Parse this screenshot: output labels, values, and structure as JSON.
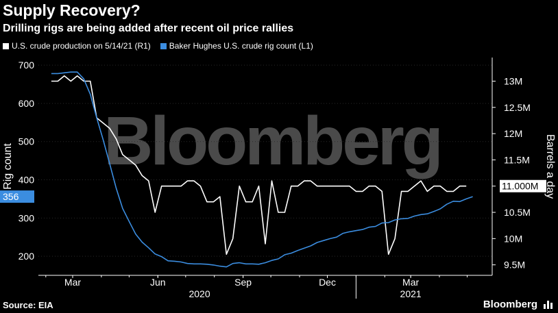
{
  "header": {
    "title": "Supply Recovery?",
    "subtitle": "Drilling rigs are being added after recent oil price rallies"
  },
  "legend": {
    "production_label": "U.S. crude production on 5/14/21 (R1)",
    "rig_label": "Baker Hughes U.S. crude rig count (L1)"
  },
  "footer": {
    "source": "Source: EIA",
    "brand": "Bloomberg"
  },
  "watermark": "Bloomberg",
  "colors": {
    "background": "#000000",
    "production_line": "#ffffff",
    "rig_line": "#3b8de0",
    "axis_text": "#ffffff"
  },
  "chart_data": {
    "type": "line",
    "x_start": "2020-02-07",
    "x_end": "2021-05-14",
    "xlim": [
      "2020-01-24",
      "2021-05-28"
    ],
    "left_axis": {
      "label": "Rig count",
      "ylim": [
        150,
        720
      ],
      "ticks": [
        200,
        300,
        400,
        500,
        600,
        700
      ],
      "tick_labels": [
        "200",
        "300",
        "400",
        "500",
        "600",
        "700"
      ],
      "last_value_label": "356"
    },
    "right_axis": {
      "label": "Barrels a day",
      "ylim": [
        9.3,
        13.45
      ],
      "ticks": [
        9.5,
        10,
        10.5,
        11,
        11.5,
        12,
        12.5,
        13
      ],
      "tick_labels": [
        "9.5M",
        "10M",
        "10.5M",
        "11M",
        "11.5M",
        "12M",
        "12.5M",
        "13M"
      ],
      "last_value_label": "11.000M"
    },
    "x_ticks": [
      {
        "date": "2020-03-01",
        "label": "Mar"
      },
      {
        "date": "2020-06-01",
        "label": "Jun"
      },
      {
        "date": "2020-09-01",
        "label": "Sep"
      },
      {
        "date": "2020-12-01",
        "label": "Dec"
      },
      {
        "date": "2021-03-01",
        "label": "Mar"
      }
    ],
    "year_labels": [
      {
        "date": "2020-07-16",
        "label": "2020"
      },
      {
        "date": "2021-03-01",
        "label": "2021"
      }
    ],
    "year_separator_date": "2021-01-01",
    "grid": true,
    "series": [
      {
        "name": "U.S. crude production on 5/14/21 (R1)",
        "axis": "right",
        "color": "#ffffff",
        "values": [
          13.0,
          13.0,
          13.1,
          13.0,
          13.1,
          13.0,
          13.0,
          12.3,
          12.2,
          12.1,
          11.9,
          11.6,
          11.5,
          11.4,
          11.2,
          11.1,
          10.5,
          11.0,
          11.0,
          11.0,
          11.0,
          11.1,
          11.1,
          11.0,
          10.7,
          10.7,
          10.8,
          9.7,
          10.0,
          11.0,
          10.7,
          10.7,
          11.0,
          9.9,
          11.1,
          10.5,
          10.5,
          11.0,
          11.0,
          11.1,
          11.1,
          11.0,
          11.0,
          11.0,
          11.0,
          11.0,
          11.0,
          10.9,
          10.9,
          11.0,
          11.0,
          10.9,
          9.7,
          10.0,
          10.9,
          10.9,
          11.0,
          11.1,
          10.9,
          11.0,
          11.0,
          10.9,
          10.9,
          11.0,
          11.0
        ]
      },
      {
        "name": "Baker Hughes U.S. crude rig count (L1)",
        "axis": "left",
        "color": "#3b8de0",
        "values": [
          678,
          678,
          680,
          682,
          682,
          664,
          624,
          562,
          504,
          442,
          378,
          325,
          291,
          258,
          237,
          222,
          206,
          199,
          188,
          187,
          185,
          181,
          180,
          180,
          179,
          177,
          174,
          172,
          181,
          183,
          180,
          180,
          179,
          183,
          189,
          193,
          204,
          208,
          215,
          221,
          227,
          236,
          241,
          246,
          250,
          260,
          264,
          267,
          270,
          276,
          278,
          287,
          288,
          295,
          298,
          299,
          305,
          309,
          311,
          317,
          324,
          336,
          344,
          343,
          350,
          356
        ]
      }
    ]
  }
}
